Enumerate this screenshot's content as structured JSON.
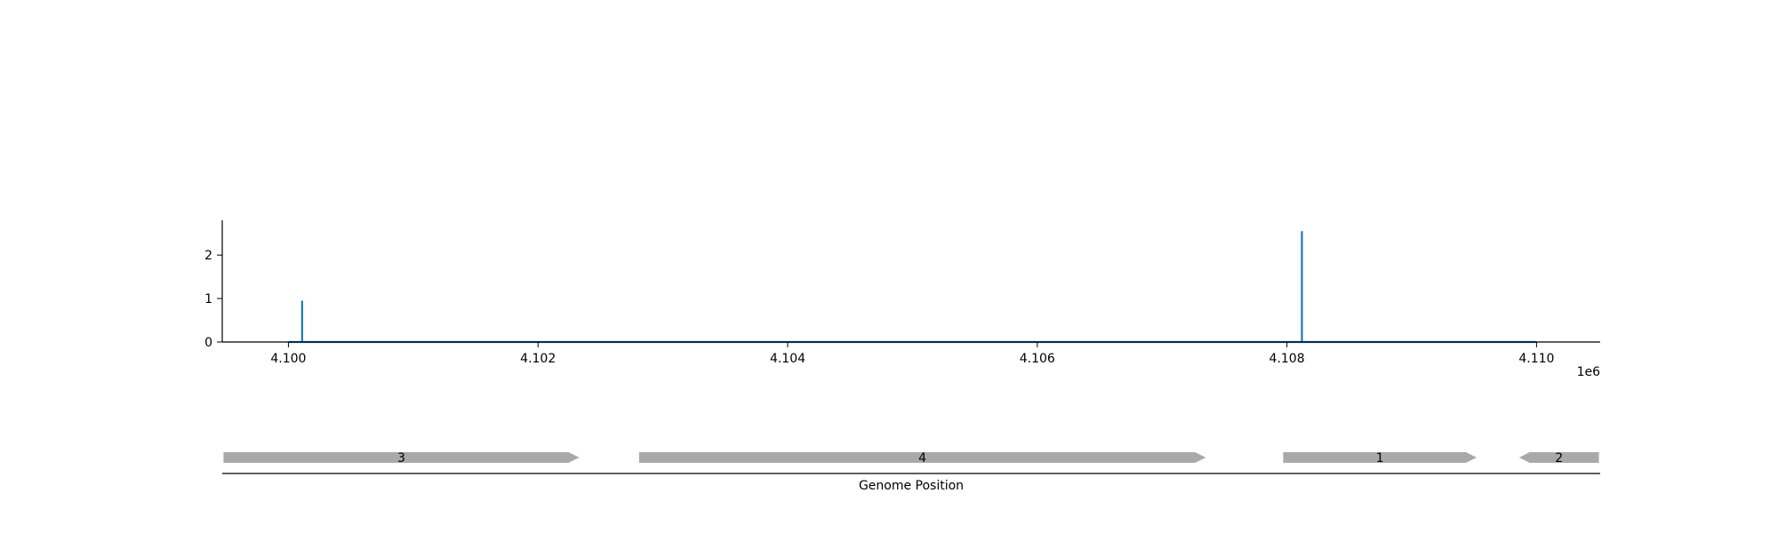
{
  "chart_data": {
    "type": "line",
    "x_offset_label": "1e6",
    "x_ticks": [
      4.1,
      4.102,
      4.104,
      4.106,
      4.108,
      4.11
    ],
    "x_tick_labels": [
      "4.100",
      "4.102",
      "4.104",
      "4.106",
      "4.108",
      "4.110"
    ],
    "xlim": [
      4.09947,
      4.11051
    ],
    "y_ticks": [
      0,
      1,
      2
    ],
    "y_tick_labels": [
      "0",
      "1",
      "2"
    ],
    "ylim": [
      0,
      2.8
    ],
    "series": [
      {
        "color": "#1f77b4",
        "x": [
          4.1,
          4.10011,
          4.10011,
          4.10011,
          4.10812,
          4.10812,
          4.10812,
          4.11
        ],
        "values": [
          0,
          0,
          0.95,
          0,
          0,
          2.55,
          0,
          0
        ]
      }
    ],
    "xlabel": "Genome Position",
    "genes": [
      {
        "label": "3",
        "start": 4.09948,
        "end": 4.10233,
        "strand": "+"
      },
      {
        "label": "4",
        "start": 4.10281,
        "end": 4.10735,
        "strand": "+"
      },
      {
        "label": "1",
        "start": 4.10797,
        "end": 4.10952,
        "strand": "+"
      },
      {
        "label": "2",
        "start": 4.10986,
        "end": 4.1105,
        "strand": "-"
      }
    ],
    "gene_color": "#a9a9a9",
    "grid": false
  }
}
